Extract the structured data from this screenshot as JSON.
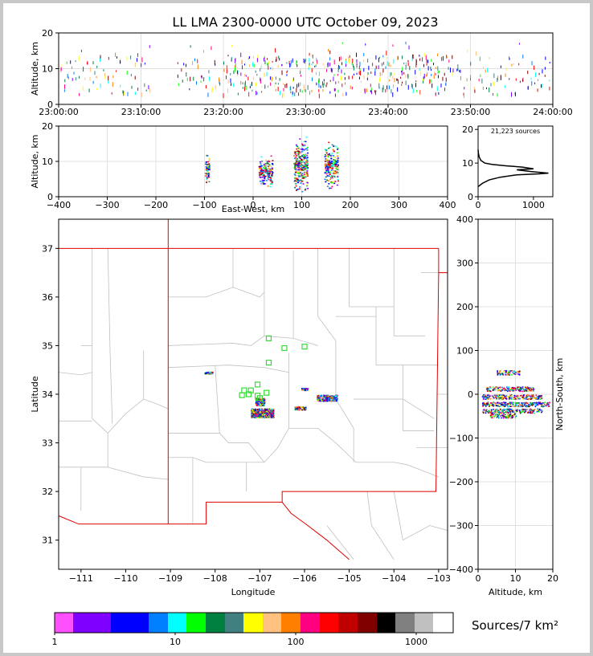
{
  "chart_data": [
    {
      "type": "scatter",
      "name": "altitude-time",
      "title": "LL LMA 2300-0000 UTC October 09, 2023",
      "xlabel": "",
      "ylabel": "Altitude, km",
      "x_ticks": [
        "23:00:00",
        "23:10:00",
        "23:20:00",
        "23:30:00",
        "23:40:00",
        "23:50:00",
        "24:00:00"
      ],
      "xlim_minutes": [
        0,
        60
      ],
      "ylim": [
        0,
        20
      ],
      "y_ticks": [
        0,
        10,
        20
      ],
      "grid": true
    },
    {
      "type": "scatter",
      "name": "altitude-east-west",
      "xlabel": "East-West, km",
      "ylabel": "Altitude, km",
      "xlim": [
        -400,
        400
      ],
      "ylim": [
        0,
        20
      ],
      "x_ticks": [
        -400,
        -300,
        -200,
        -100,
        0,
        100,
        200,
        300,
        400
      ],
      "y_ticks": [
        0,
        10,
        20
      ],
      "clusters": [
        {
          "x": -95,
          "alt": 8
        },
        {
          "x": 25,
          "alt": 7
        },
        {
          "x": 97,
          "alt": 9
        },
        {
          "x": 160,
          "alt": 9
        }
      ],
      "grid": true
    },
    {
      "type": "line",
      "name": "altitude-histogram",
      "annotation": "21,223 sources",
      "xlim": [
        0,
        1350
      ],
      "ylim": [
        0,
        21
      ],
      "x_ticks": [
        0,
        1000
      ],
      "y_ticks": [
        0,
        10,
        20
      ],
      "profile": [
        [
          0,
          3
        ],
        [
          80,
          4
        ],
        [
          200,
          5
        ],
        [
          400,
          5.8
        ],
        [
          700,
          6.5
        ],
        [
          1100,
          6.8
        ],
        [
          1270,
          7
        ],
        [
          950,
          7.5
        ],
        [
          700,
          8
        ],
        [
          1000,
          8.3
        ],
        [
          800,
          8.8
        ],
        [
          500,
          9.2
        ],
        [
          250,
          9.6
        ],
        [
          120,
          10
        ],
        [
          50,
          10.8
        ],
        [
          20,
          11.8
        ],
        [
          5,
          13
        ],
        [
          0,
          14
        ]
      ]
    },
    {
      "type": "scatter",
      "name": "plan-view-map",
      "xlabel": "Longitude",
      "ylabel": "Latitude",
      "xlim": [
        -111.5,
        -102.8
      ],
      "ylim": [
        30.4,
        37.6
      ],
      "x_ticks": [
        -111,
        -110,
        -109,
        -108,
        -107,
        -106,
        -105,
        -104,
        -103
      ],
      "y_ticks": [
        31,
        32,
        33,
        34,
        35,
        36,
        37
      ],
      "stations": [
        [
          -106.8,
          35.15
        ],
        [
          -106.45,
          34.95
        ],
        [
          -106.0,
          34.98
        ],
        [
          -106.8,
          34.65
        ],
        [
          -107.05,
          34.2
        ],
        [
          -107.2,
          34.08
        ],
        [
          -107.35,
          34.08
        ],
        [
          -107.4,
          33.98
        ],
        [
          -107.25,
          34.0
        ],
        [
          -107.05,
          33.97
        ],
        [
          -106.85,
          34.03
        ],
        [
          -107.0,
          33.92
        ]
      ],
      "source_clusters": [
        {
          "lon": -108.15,
          "lat": 34.45,
          "w": 0.18,
          "h": 0.04
        },
        {
          "lon": -106.95,
          "lat": 33.62,
          "w": 0.5,
          "h": 0.18
        },
        {
          "lon": -107.0,
          "lat": 33.85,
          "w": 0.2,
          "h": 0.15
        },
        {
          "lon": -106.1,
          "lat": 33.72,
          "w": 0.25,
          "h": 0.06
        },
        {
          "lon": -105.5,
          "lat": 33.93,
          "w": 0.45,
          "h": 0.12
        },
        {
          "lon": -106.0,
          "lat": 34.11,
          "w": 0.15,
          "h": 0.04
        }
      ]
    },
    {
      "type": "scatter",
      "name": "north-south-altitude",
      "xlabel": "Altitude, km",
      "ylabel": "North-South, km",
      "xlim": [
        0,
        20
      ],
      "ylim": [
        -400,
        400
      ],
      "x_ticks": [
        0,
        10,
        20
      ],
      "y_ticks": [
        -400,
        -300,
        -200,
        -100,
        0,
        100,
        200,
        300,
        400
      ],
      "bands": [
        {
          "y": 50,
          "alt": [
            5,
            11
          ]
        },
        {
          "y": 13,
          "alt": [
            2,
            15
          ]
        },
        {
          "y": -5,
          "alt": [
            1,
            17
          ]
        },
        {
          "y": -22,
          "alt": [
            1,
            19
          ]
        },
        {
          "y": -37,
          "alt": [
            1,
            17
          ]
        },
        {
          "y": -48,
          "alt": [
            3,
            10
          ]
        }
      ],
      "grid": true
    },
    {
      "type": "heatmap",
      "name": "density-colorbar",
      "label": "Sources/7 km²",
      "tick_labels": [
        "1",
        "10",
        "100",
        "1000"
      ],
      "colors": [
        "#ff50ff",
        "#8000ff",
        "#8000ff",
        "#0000ff",
        "#0000ff",
        "#0080ff",
        "#00ffff",
        "#00ff00",
        "#008040",
        "#408080",
        "#ffff00",
        "#ffc080",
        "#ff8000",
        "#ff0080",
        "#ff0000",
        "#c00000",
        "#800000",
        "#000000",
        "#808080",
        "#c0c0c0",
        "#ffffff"
      ]
    }
  ]
}
